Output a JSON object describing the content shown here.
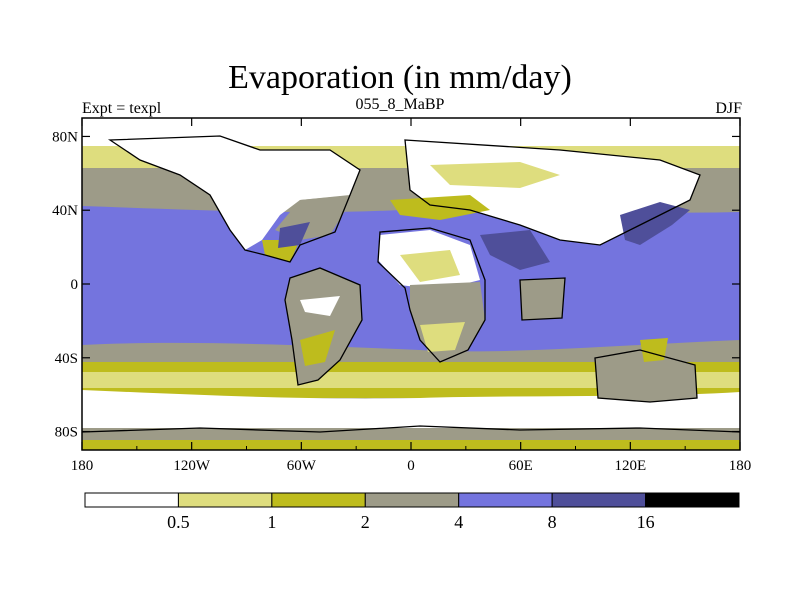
{
  "header": {
    "title": "Evaporation (in mm/day)",
    "left_label": "Expt = texpl",
    "center_label": "055_8_MaBP",
    "right_label": "DJF"
  },
  "map": {
    "lon_ticks": [
      "180",
      "120W",
      "60W",
      "0",
      "60E",
      "120E",
      "180"
    ],
    "lat_ticks": [
      "80N",
      "40N",
      "0",
      "40S",
      "80S"
    ],
    "lon_range": [
      -180,
      180
    ],
    "lat_range": [
      -90,
      90
    ]
  },
  "legend": {
    "colors": [
      "#ffffff",
      "#dedd7e",
      "#bebc1d",
      "#9d9b88",
      "#7474de",
      "#4f4f9a",
      "#000000"
    ],
    "labels": [
      "0.5",
      "1",
      "2",
      "4",
      "8",
      "16"
    ]
  }
}
